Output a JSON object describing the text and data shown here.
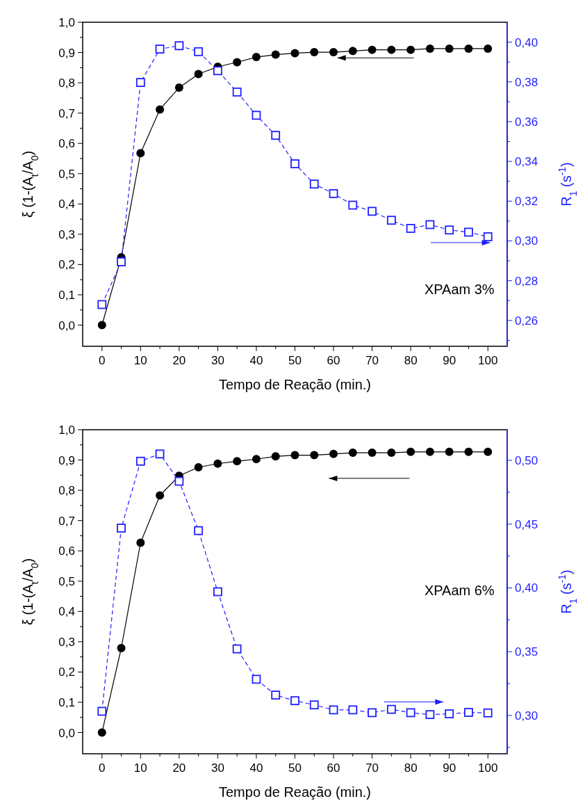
{
  "chart_data": [
    {
      "type": "line",
      "xlabel": "Tempo de Reação (min.)",
      "ylabel": "ξ (1-(A$_{t}$/A$_{0}$)",
      "y2label": "R$_{1}$ (s$^{-1}$)",
      "annotations": [
        "XPAam 3%"
      ],
      "x": [
        0,
        5,
        10,
        15,
        20,
        25,
        30,
        35,
        40,
        45,
        50,
        55,
        60,
        65,
        70,
        75,
        80,
        85,
        90,
        95,
        100
      ],
      "series": [
        {
          "color": "#000000",
          "marker": "circle",
          "line_style": "solid",
          "values": [
            0,
            0.224,
            0.568,
            0.712,
            0.784,
            0.829,
            0.853,
            0.868,
            0.885,
            0.893,
            0.898,
            0.901,
            0.901,
            0.905,
            0.909,
            0.909,
            0.909,
            0.913,
            0.913,
            0.913,
            0.913
          ]
        },
        {
          "color": "#1f1fff",
          "marker": "square",
          "line_style": "dashed",
          "axis": "y2",
          "values": [
            0.268,
            0.2895,
            0.3797,
            0.3965,
            0.3982,
            0.3952,
            0.3856,
            0.3749,
            0.3632,
            0.3531,
            0.3388,
            0.3286,
            0.3238,
            0.318,
            0.3149,
            0.3104,
            0.3063,
            0.3082,
            0.3055,
            0.3044,
            0.3021
          ]
        }
      ],
      "xlim": [
        -5,
        105
      ],
      "xticks": [
        0,
        {
          "value": 5,
          "label": null
        },
        10,
        {
          "value": 15,
          "label": null
        },
        20,
        {
          "value": 25,
          "label": null
        },
        30,
        {
          "value": 35,
          "label": null
        },
        40,
        {
          "value": 45,
          "label": null
        },
        50,
        {
          "value": 55,
          "label": null
        },
        60,
        {
          "value": 65,
          "label": null
        },
        70,
        {
          "value": 75,
          "label": null
        },
        80,
        {
          "value": 85,
          "label": null
        },
        90,
        {
          "value": 95,
          "label": null
        },
        100
      ],
      "ylim": [
        -0.07,
        1
      ],
      "yticks": [
        {
          "value": 0,
          "label": "0,0"
        },
        {
          "value": 0.05,
          "label": null
        },
        {
          "value": 0.1,
          "label": "0,1"
        },
        {
          "value": 0.15,
          "label": null
        },
        {
          "value": 0.2,
          "label": "0,2"
        },
        {
          "value": 0.25,
          "label": null
        },
        {
          "value": 0.3,
          "label": "0,3"
        },
        {
          "value": 0.35,
          "label": null
        },
        {
          "value": 0.4,
          "label": "0,4"
        },
        {
          "value": 0.45,
          "label": null
        },
        {
          "value": 0.5,
          "label": "0,5"
        },
        {
          "value": 0.55,
          "label": null
        },
        {
          "value": 0.6,
          "label": "0,6"
        },
        {
          "value": 0.65,
          "label": null
        },
        {
          "value": 0.7,
          "label": "0,7"
        },
        {
          "value": 0.75,
          "label": null
        },
        {
          "value": 0.8,
          "label": "0,8"
        },
        {
          "value": 0.85,
          "label": null
        },
        {
          "value": 0.9,
          "label": "0,9"
        },
        {
          "value": 0.95,
          "label": null
        },
        {
          "value": 1,
          "label": "1,0"
        }
      ],
      "y2lim": [
        0.247,
        0.41
      ],
      "y2ticks": [
        {
          "value": 0.25,
          "label": null
        },
        {
          "value": 0.26,
          "label": "0,26"
        },
        {
          "value": 0.27,
          "label": null
        },
        {
          "value": 0.28,
          "label": "0,28"
        },
        {
          "value": 0.29,
          "label": null
        },
        {
          "value": 0.3,
          "label": "0,30"
        },
        {
          "value": 0.31,
          "label": null
        },
        {
          "value": 0.32,
          "label": "0,32"
        },
        {
          "value": 0.33,
          "label": null
        },
        {
          "value": 0.34,
          "label": "0,34"
        },
        {
          "value": 0.35,
          "label": null
        },
        {
          "value": 0.36,
          "label": "0,36"
        },
        {
          "value": 0.37,
          "label": null
        },
        {
          "value": 0.38,
          "label": "0,38"
        },
        {
          "value": 0.39,
          "label": null
        },
        {
          "value": 0.4,
          "label": "0,40"
        }
      ],
      "grid": false
    },
    {
      "type": "line",
      "xlabel": "Tempo de Reação (min.)",
      "ylabel": "ξ (1-(A$_{t}$/A$_{0}$)",
      "y2label": "R$_{1}$ (s$^{-1}$)",
      "annotations": [
        "XPAam 6%"
      ],
      "x": [
        0,
        5,
        10,
        15,
        20,
        25,
        30,
        35,
        40,
        45,
        50,
        55,
        60,
        65,
        70,
        75,
        80,
        85,
        90,
        95,
        100
      ],
      "series": [
        {
          "color": "#000000",
          "marker": "circle",
          "line_style": "solid",
          "values": [
            0,
            0.279,
            0.627,
            0.783,
            0.848,
            0.876,
            0.888,
            0.896,
            0.903,
            0.912,
            0.916,
            0.916,
            0.92,
            0.924,
            0.924,
            0.924,
            0.927,
            0.927,
            0.927,
            0.927,
            0.927
          ]
        },
        {
          "color": "#1f1fff",
          "marker": "square",
          "line_style": "dashed",
          "axis": "y2",
          "values": [
            0.3033,
            0.4469,
            0.4993,
            0.505,
            0.4836,
            0.4449,
            0.397,
            0.3522,
            0.3284,
            0.316,
            0.3116,
            0.3083,
            0.3044,
            0.3044,
            0.3022,
            0.3048,
            0.3022,
            0.3007,
            0.3013,
            0.3024,
            0.302
          ]
        }
      ],
      "xlim": [
        -5,
        105
      ],
      "xticks": [
        0,
        {
          "value": 5,
          "label": null
        },
        10,
        {
          "value": 15,
          "label": null
        },
        20,
        {
          "value": 25,
          "label": null
        },
        30,
        {
          "value": 35,
          "label": null
        },
        40,
        {
          "value": 45,
          "label": null
        },
        50,
        {
          "value": 55,
          "label": null
        },
        60,
        {
          "value": 65,
          "label": null
        },
        70,
        {
          "value": 75,
          "label": null
        },
        80,
        {
          "value": 85,
          "label": null
        },
        90,
        {
          "value": 95,
          "label": null
        },
        100
      ],
      "ylim": [
        -0.07,
        1
      ],
      "yticks": [
        {
          "value": 0,
          "label": "0,0"
        },
        {
          "value": 0.05,
          "label": null
        },
        {
          "value": 0.1,
          "label": "0,1"
        },
        {
          "value": 0.15,
          "label": null
        },
        {
          "value": 0.2,
          "label": "0,2"
        },
        {
          "value": 0.25,
          "label": null
        },
        {
          "value": 0.3,
          "label": "0,3"
        },
        {
          "value": 0.35,
          "label": null
        },
        {
          "value": 0.4,
          "label": "0,4"
        },
        {
          "value": 0.45,
          "label": null
        },
        {
          "value": 0.5,
          "label": "0,5"
        },
        {
          "value": 0.55,
          "label": null
        },
        {
          "value": 0.6,
          "label": "0,6"
        },
        {
          "value": 0.65,
          "label": null
        },
        {
          "value": 0.7,
          "label": "0,7"
        },
        {
          "value": 0.75,
          "label": null
        },
        {
          "value": 0.8,
          "label": "0,8"
        },
        {
          "value": 0.85,
          "label": null
        },
        {
          "value": 0.9,
          "label": "0,9"
        },
        {
          "value": 0.95,
          "label": null
        },
        {
          "value": 1,
          "label": "1,0"
        }
      ],
      "y2lim": [
        0.27,
        0.524
      ],
      "y2ticks": [
        {
          "value": 0.275,
          "label": null
        },
        {
          "value": 0.3,
          "label": "0,30"
        },
        {
          "value": 0.325,
          "label": null
        },
        {
          "value": 0.35,
          "label": "0,35"
        },
        {
          "value": 0.375,
          "label": null
        },
        {
          "value": 0.4,
          "label": "0,40"
        },
        {
          "value": 0.425,
          "label": null
        },
        {
          "value": 0.45,
          "label": "0,45"
        },
        {
          "value": 0.475,
          "label": null
        },
        {
          "value": 0.5,
          "label": "0,50"
        }
      ],
      "grid": false
    }
  ]
}
